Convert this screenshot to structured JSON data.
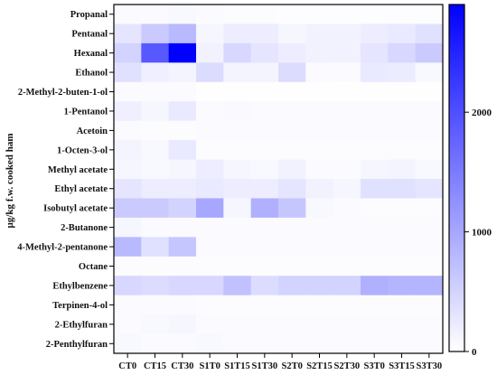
{
  "chart_data": {
    "type": "heatmap",
    "ylabel": "µg/kg f.w. cooked ham",
    "xlabel": "",
    "title": "",
    "rows": [
      "Propanal",
      "Pentanal",
      "Hexanal",
      "Ethanol",
      "2-Methyl-2-buten-1-ol",
      "1-Pentanol",
      "Acetoin",
      "1-Octen-3-ol",
      "Methyl acetate",
      "Ethyl acetate",
      "Isobutyl acetate",
      "2-Butanone",
      "4-Methyl-2-pentanone",
      "Octane",
      "Ethylbenzene",
      "Terpinen-4-ol",
      "2-Ethylfuran",
      "2-Penthylfuran"
    ],
    "columns": [
      "CT0",
      "CT15",
      "CT30",
      "S1T0",
      "S1T15",
      "S1T30",
      "S2T0",
      "S2T15",
      "S2T30",
      "S3T0",
      "S3T15",
      "S3T30"
    ],
    "values": [
      [
        40,
        60,
        80,
        40,
        30,
        30,
        20,
        20,
        20,
        20,
        20,
        20
      ],
      [
        300,
        600,
        800,
        100,
        200,
        200,
        100,
        150,
        150,
        200,
        250,
        350
      ],
      [
        500,
        1900,
        2900,
        150,
        450,
        300,
        200,
        150,
        150,
        300,
        450,
        600
      ],
      [
        350,
        180,
        130,
        400,
        120,
        120,
        400,
        60,
        50,
        250,
        220,
        80
      ],
      [
        50,
        40,
        60,
        10,
        10,
        10,
        10,
        10,
        10,
        10,
        10,
        10
      ],
      [
        180,
        100,
        250,
        60,
        70,
        40,
        40,
        40,
        40,
        60,
        60,
        40
      ],
      [
        40,
        30,
        30,
        50,
        60,
        50,
        40,
        40,
        40,
        40,
        40,
        40
      ],
      [
        120,
        80,
        250,
        30,
        30,
        30,
        30,
        30,
        30,
        30,
        30,
        30
      ],
      [
        100,
        80,
        100,
        200,
        100,
        80,
        150,
        60,
        60,
        100,
        120,
        80
      ],
      [
        300,
        200,
        200,
        250,
        200,
        200,
        300,
        150,
        100,
        350,
        350,
        300
      ],
      [
        600,
        600,
        500,
        1000,
        100,
        900,
        650,
        80,
        40,
        30,
        30,
        30
      ],
      [
        100,
        60,
        50,
        50,
        50,
        40,
        40,
        40,
        40,
        40,
        40,
        40
      ],
      [
        800,
        350,
        650,
        40,
        40,
        40,
        40,
        40,
        40,
        40,
        40,
        40
      ],
      [
        30,
        30,
        30,
        30,
        30,
        30,
        30,
        30,
        30,
        30,
        30,
        30
      ],
      [
        450,
        400,
        450,
        450,
        700,
        400,
        500,
        500,
        500,
        900,
        850,
        850
      ],
      [
        40,
        40,
        60,
        30,
        30,
        30,
        30,
        30,
        30,
        30,
        30,
        30
      ],
      [
        50,
        80,
        100,
        40,
        40,
        40,
        40,
        40,
        40,
        40,
        40,
        40
      ],
      [
        80,
        60,
        50,
        80,
        40,
        40,
        40,
        40,
        40,
        40,
        40,
        40
      ]
    ],
    "color_scale": {
      "min": 0,
      "max": 2900,
      "low_color": "#ffffff",
      "high_color": "#0000ff"
    },
    "colorbar_ticks": [
      {
        "value": 0,
        "label": "0"
      },
      {
        "value": 1000,
        "label": "1000"
      },
      {
        "value": 2000,
        "label": "2000"
      }
    ],
    "grid": false,
    "legend_position": "right"
  }
}
